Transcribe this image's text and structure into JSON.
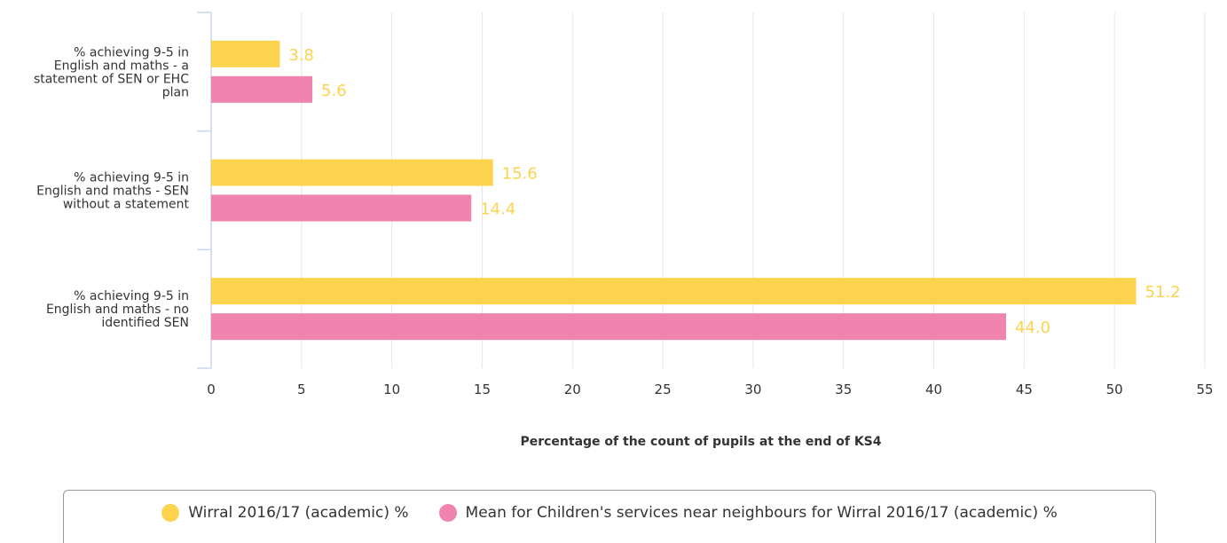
{
  "chart_data": {
    "type": "bar",
    "orientation": "horizontal",
    "categories": [
      [
        "% achieving 9-5 in",
        "English and maths - a",
        "statement of SEN or EHC",
        "plan"
      ],
      [
        "% achieving 9-5 in",
        "English and maths - SEN",
        "without a statement"
      ],
      [
        "% achieving 9-5 in",
        "English and maths - no",
        "identified SEN"
      ]
    ],
    "series": [
      {
        "name": "Wirral 2016/17 (academic) %",
        "color": "#fcd34d",
        "values": [
          3.8,
          15.6,
          51.2
        ],
        "labels": [
          "3.8",
          "15.6",
          "51.2"
        ]
      },
      {
        "name": "Mean for Children's services near neighbours for Wirral 2016/17 (academic) %",
        "color": "#f084ae",
        "values": [
          5.6,
          14.4,
          44.0
        ],
        "labels": [
          "5.6",
          "14.4",
          "44.0"
        ]
      }
    ],
    "xlabel": "Percentage of the count of pupils at the end of KS4",
    "xlim": [
      0,
      55
    ],
    "xticks": [
      "0",
      "5",
      "10",
      "15",
      "20",
      "25",
      "30",
      "35",
      "40",
      "45",
      "50",
      "55"
    ],
    "grid": "vertical",
    "legend": "bottom-center",
    "data_label_color": "#fcd34d"
  }
}
